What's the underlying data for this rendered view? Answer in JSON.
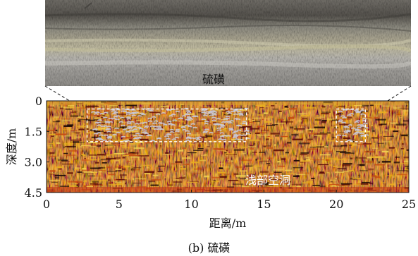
{
  "chart_data": {
    "type": "heatmap",
    "title": "",
    "xlabel": "距离/m",
    "ylabel": "深度/m",
    "xlim": [
      0,
      25
    ],
    "ylim": [
      4.5,
      0
    ],
    "x_ticks": [
      0,
      5,
      10,
      15,
      20,
      25
    ],
    "y_ticks": [
      0,
      1.5,
      3.0,
      4.5
    ],
    "x_tick_labels": [
      "0",
      "5",
      "10",
      "15",
      "20",
      "25"
    ],
    "y_tick_labels": [
      "0",
      "1.5",
      "3.0",
      "4.5"
    ],
    "photo_label": "硫磺",
    "annotation": "浅部空洞",
    "highlight_regions": [
      {
        "x": [
          2.8,
          13.8
        ],
        "y": [
          0.4,
          2.0
        ]
      },
      {
        "x": [
          20.0,
          22.0
        ],
        "y": [
          0.4,
          2.0
        ]
      }
    ],
    "colors": {
      "background": "#8a1a0c",
      "hot": "#e8b020",
      "warm": "#c44a10",
      "cold": "#1a0805",
      "void_signal": "#c8c8d8",
      "box_outline": "#ffffff"
    }
  },
  "caption": "(b) 硫磺"
}
